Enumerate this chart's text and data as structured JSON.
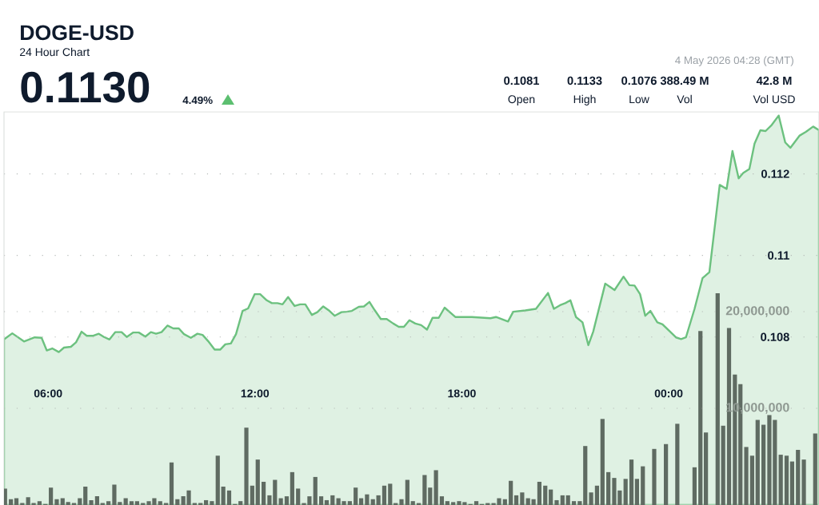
{
  "chart_data": {
    "type": "area",
    "title": "DOGE-USD",
    "subtitle": "24 Hour Chart",
    "annotations": [
      "0.1130",
      "4.49%",
      "0.1081",
      "Open",
      "0.1133",
      "High",
      "0.1076",
      "Low",
      "388.49 M",
      "Vol",
      "42.8 M",
      "Vol USD",
      "4 May 2026 04:28 (GMT)"
    ],
    "xlim": [
      4.72,
      28.36
    ],
    "xticks": [
      {
        "value": 6,
        "label": "06:00"
      },
      {
        "value": 12,
        "label": "12:00"
      },
      {
        "value": 18,
        "label": "18:00"
      },
      {
        "value": 24,
        "label": "00:00"
      }
    ],
    "ylim": [
      0.10388,
      0.11352
    ],
    "yticks": [
      0.108,
      0.11,
      0.112
    ],
    "y2lim": [
      0,
      40660000
    ],
    "y2ticks": [
      {
        "value": 10000000,
        "label": "10,000,000"
      },
      {
        "value": 20000000,
        "label": "20,000,000"
      }
    ],
    "grid": "y",
    "series": [
      {
        "color": "#6cc17f",
        "x": [
          4.72,
          4.96,
          5.3,
          5.61,
          5.81,
          5.96,
          6.12,
          6.31,
          6.46,
          6.66,
          6.81,
          6.97,
          7.12,
          7.31,
          7.47,
          7.62,
          7.78,
          7.95,
          8.13,
          8.28,
          8.47,
          8.63,
          8.82,
          8.98,
          9.13,
          9.29,
          9.46,
          9.63,
          9.79,
          9.94,
          10.14,
          10.33,
          10.48,
          10.64,
          10.83,
          10.99,
          11.14,
          11.3,
          11.45,
          11.64,
          11.8,
          11.99,
          12.15,
          12.34,
          12.49,
          12.65,
          12.8,
          12.96,
          13.15,
          13.31,
          13.46,
          13.65,
          13.81,
          13.98,
          14.16,
          14.31,
          14.51,
          14.66,
          14.81,
          15.01,
          15.16,
          15.32,
          15.47,
          15.65,
          15.82,
          16.01,
          16.17,
          16.32,
          16.48,
          16.65,
          16.82,
          16.99,
          17.15,
          17.33,
          17.5,
          17.81,
          18.29,
          18.83,
          18.99,
          19.34,
          19.49,
          19.84,
          20.15,
          20.5,
          20.67,
          20.85,
          21.0,
          21.15,
          21.31,
          21.5,
          21.67,
          21.81,
          22.16,
          22.43,
          22.69,
          22.86,
          23.01,
          23.17,
          23.32,
          23.47,
          23.67,
          23.82,
          24.21,
          24.36,
          24.5,
          24.75,
          24.98,
          25.18,
          25.48,
          25.68,
          25.85,
          26.03,
          26.16,
          26.34,
          26.49,
          26.66,
          26.81,
          26.99,
          27.19,
          27.38,
          27.53,
          27.8,
          27.98,
          28.19,
          28.36
        ],
        "values": [
          0.10794,
          0.10809,
          0.10789,
          0.10799,
          0.10798,
          0.10767,
          0.10772,
          0.10763,
          0.10774,
          0.10776,
          0.10787,
          0.10813,
          0.10803,
          0.10803,
          0.10808,
          0.108,
          0.10794,
          0.10812,
          0.10812,
          0.108,
          0.10811,
          0.10811,
          0.10801,
          0.10812,
          0.10808,
          0.10812,
          0.10828,
          0.10821,
          0.10821,
          0.10807,
          0.10798,
          0.10808,
          0.10805,
          0.1079,
          0.10769,
          0.10769,
          0.10782,
          0.10784,
          0.10807,
          0.10864,
          0.1087,
          0.10905,
          0.10905,
          0.1089,
          0.10883,
          0.10883,
          0.1088,
          0.10898,
          0.10876,
          0.1088,
          0.1088,
          0.10854,
          0.10861,
          0.10875,
          0.10864,
          0.10852,
          0.10861,
          0.10862,
          0.10864,
          0.10874,
          0.10875,
          0.10886,
          0.10866,
          0.10844,
          0.10844,
          0.10833,
          0.10825,
          0.10825,
          0.10841,
          0.10833,
          0.10829,
          0.10818,
          0.10847,
          0.10847,
          0.10872,
          0.10849,
          0.10849,
          0.10846,
          0.10849,
          0.10838,
          0.10862,
          0.10865,
          0.10869,
          0.10908,
          0.10869,
          0.10878,
          0.10883,
          0.1089,
          0.10849,
          0.10836,
          0.1078,
          0.10813,
          0.10931,
          0.10915,
          0.10948,
          0.10927,
          0.10926,
          0.10905,
          0.10852,
          0.10864,
          0.10836,
          0.10831,
          0.10799,
          0.10795,
          0.10799,
          0.10869,
          0.10944,
          0.10959,
          0.11173,
          0.11163,
          0.11256,
          0.11189,
          0.11202,
          0.11212,
          0.11274,
          0.11307,
          0.11305,
          0.1132,
          0.11343,
          0.11277,
          0.11264,
          0.11294,
          0.11303,
          0.11316,
          0.11307
        ]
      },
      {
        "type": "bar",
        "axis": "y2",
        "color": "#5f6b62",
        "x": [
          4.75,
          4.92,
          5.08,
          5.25,
          5.42,
          5.58,
          5.75,
          5.92,
          6.08,
          6.25,
          6.42,
          6.58,
          6.75,
          6.92,
          7.08,
          7.25,
          7.42,
          7.58,
          7.75,
          7.92,
          8.08,
          8.25,
          8.42,
          8.58,
          8.75,
          8.92,
          9.08,
          9.25,
          9.42,
          9.58,
          9.75,
          9.92,
          10.08,
          10.25,
          10.42,
          10.58,
          10.75,
          10.92,
          11.08,
          11.25,
          11.42,
          11.58,
          11.75,
          11.92,
          12.08,
          12.25,
          12.42,
          12.58,
          12.75,
          12.92,
          13.08,
          13.25,
          13.42,
          13.58,
          13.75,
          13.92,
          14.08,
          14.25,
          14.42,
          14.58,
          14.75,
          14.92,
          15.08,
          15.25,
          15.42,
          15.58,
          15.75,
          15.92,
          16.08,
          16.25,
          16.42,
          16.58,
          16.75,
          16.92,
          17.08,
          17.25,
          17.42,
          17.58,
          17.75,
          17.92,
          18.08,
          18.25,
          18.42,
          18.58,
          18.75,
          18.92,
          19.08,
          19.25,
          19.42,
          19.58,
          19.75,
          19.92,
          20.08,
          20.25,
          20.42,
          20.58,
          20.75,
          20.92,
          21.08,
          21.25,
          21.42,
          21.58,
          21.75,
          21.92,
          22.08,
          22.25,
          22.42,
          22.58,
          22.75,
          22.92,
          23.08,
          23.25,
          23.42,
          23.58,
          23.75,
          23.92,
          24.08,
          24.25,
          24.42,
          24.58,
          24.75,
          24.92,
          25.08,
          25.25,
          25.42,
          25.58,
          25.75,
          25.92,
          26.08,
          26.25,
          26.42,
          26.58,
          26.75,
          26.92,
          27.08,
          27.25,
          27.42,
          27.58,
          27.75,
          27.92,
          28.08,
          28.25
        ],
        "values": [
          1700000,
          600000,
          700000,
          200000,
          800000,
          200000,
          400000,
          100000,
          1800000,
          600000,
          700000,
          300000,
          200000,
          700000,
          1900000,
          500000,
          900000,
          200000,
          400000,
          2100000,
          300000,
          700000,
          400000,
          400000,
          200000,
          400000,
          700000,
          400000,
          200000,
          4400000,
          600000,
          900000,
          1500000,
          200000,
          200000,
          500000,
          400000,
          5100000,
          1900000,
          1500000,
          100000,
          400000,
          8000000,
          2000000,
          4700000,
          2400000,
          1000000,
          2600000,
          700000,
          900000,
          3400000,
          1700000,
          200000,
          900000,
          2900000,
          900000,
          500000,
          1000000,
          700000,
          400000,
          400000,
          1800000,
          700000,
          1100000,
          600000,
          1000000,
          2000000,
          2200000,
          200000,
          600000,
          2600000,
          400000,
          200000,
          3100000,
          1800000,
          3600000,
          900000,
          400000,
          300000,
          400000,
          300000,
          100000,
          400000,
          100000,
          200000,
          200000,
          700000,
          600000,
          2500000,
          1000000,
          1300000,
          700000,
          600000,
          2400000,
          2000000,
          1600000,
          500000,
          1000000,
          1000000,
          400000,
          400000,
          6100000,
          1300000,
          2000000,
          8900000,
          3400000,
          2800000,
          1500000,
          2700000,
          4700000,
          2700000,
          4000000,
          null,
          5800000,
          null,
          6300000,
          null,
          8400000,
          null,
          null,
          3900000,
          18000000,
          7500000,
          null,
          21900000,
          8200000,
          18300000,
          13500000,
          12500000,
          6000000,
          5100000,
          8800000,
          8300000,
          9300000,
          8800000,
          5200000,
          5100000,
          4500000,
          5700000,
          4700000,
          null,
          7400000
        ]
      }
    ]
  }
}
